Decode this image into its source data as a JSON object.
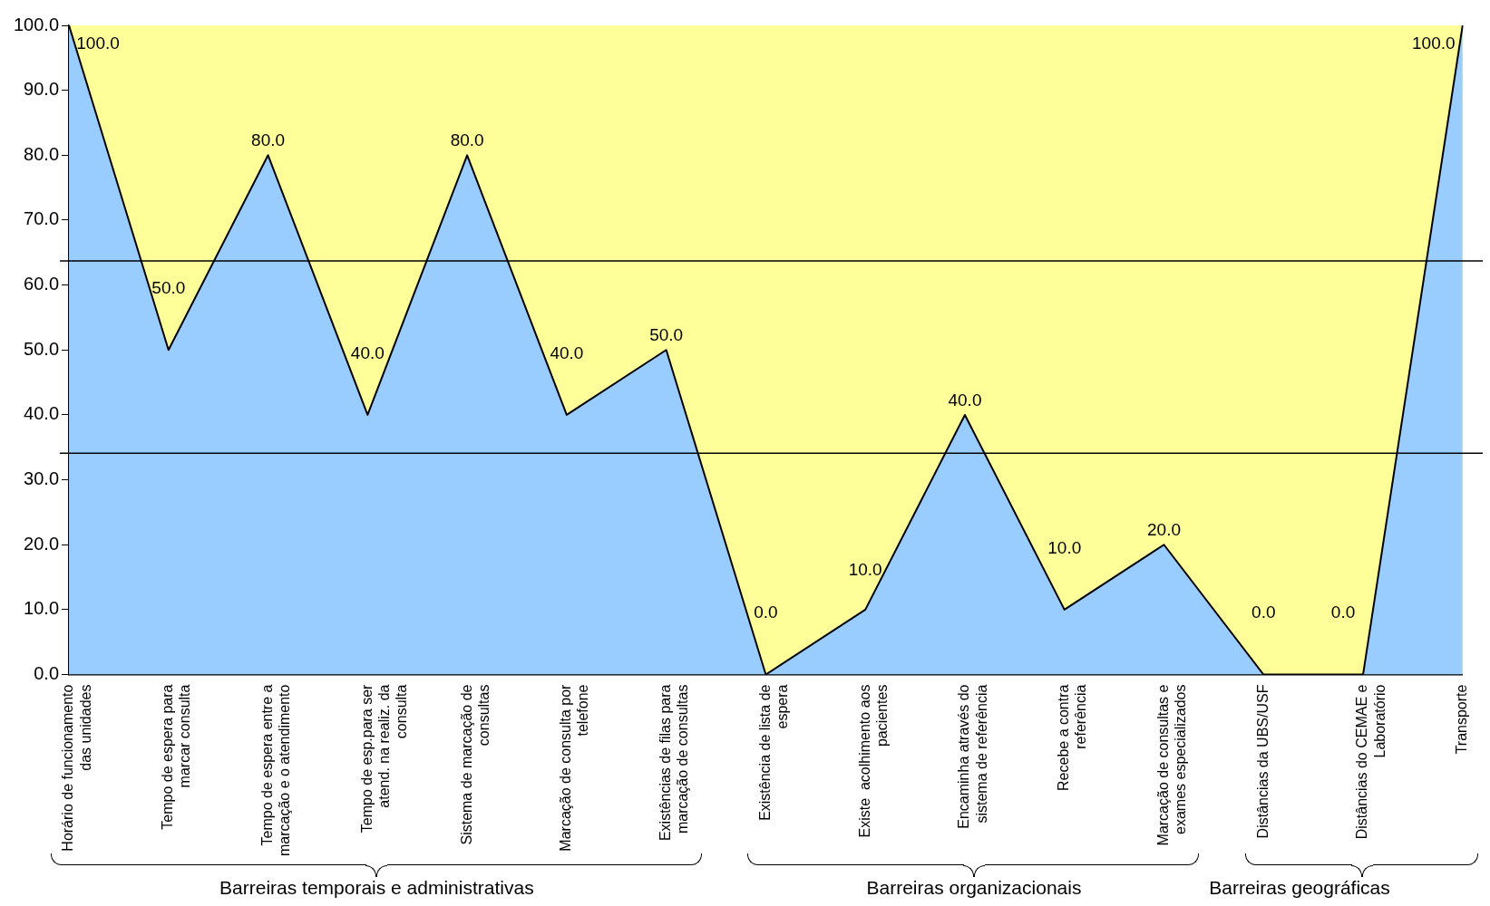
{
  "chart_data": {
    "type": "area",
    "categories": [
      "Horário de funcionamento das unidades",
      "Tempo de espera para marcar consulta",
      "Tempo de espera entre a marcação e o atendimento",
      "Tempo de esp.para ser atend. na realiz. da consulta",
      "Sistema de marcação de consultas",
      "Marcação de consulta por telefone",
      "Existências de filas para marcação de consultas",
      "Existência de lista de espera",
      "Existe  acolhimento aos pacientes",
      "Encaminha através do sistema de referência",
      "Recebe a contra referência",
      "Marcação de consultas e exames especializados",
      "Distâncias da UBS/USF",
      "Distâncias do CEMAE e Laboratório",
      "Transporte"
    ],
    "series": [
      {
        "color": "#99ccff",
        "values": [
          100,
          50,
          80,
          40,
          80,
          40,
          50,
          0,
          10,
          40,
          10,
          20,
          0,
          0,
          100
        ],
        "value_labels": [
          "100.0",
          "50.0",
          "80.0",
          "40.0",
          "80.0",
          "40.0",
          "50.0",
          "0.0",
          "10.0",
          "40.0",
          "10.0",
          "20.0",
          "0.0",
          "0.0",
          "100.0"
        ]
      }
    ],
    "ylim": [
      0,
      100
    ],
    "yticks": [
      {
        "value": 0,
        "label": "0.0"
      },
      {
        "value": 10,
        "label": "10.0"
      },
      {
        "value": 20,
        "label": "20.0"
      },
      {
        "value": 30,
        "label": "30.0"
      },
      {
        "value": 40,
        "label": "40.0"
      },
      {
        "value": 50,
        "label": "50.0"
      },
      {
        "value": 60,
        "label": "60.0"
      },
      {
        "value": 70,
        "label": "70.0"
      },
      {
        "value": 80,
        "label": "80.0"
      },
      {
        "value": 90,
        "label": "90.0"
      },
      {
        "value": 100,
        "label": "100.0"
      }
    ],
    "ref_lines": [
      {
        "axis": "y",
        "value": 63.7,
        "color": "#000000"
      },
      {
        "axis": "y",
        "value": 34.1,
        "color": "#000000"
      }
    ],
    "annotations": [
      "Barreiras temporais e administrativas",
      "Barreiras organizacionais",
      "Barreiras geográficas"
    ],
    "legend": false
  }
}
